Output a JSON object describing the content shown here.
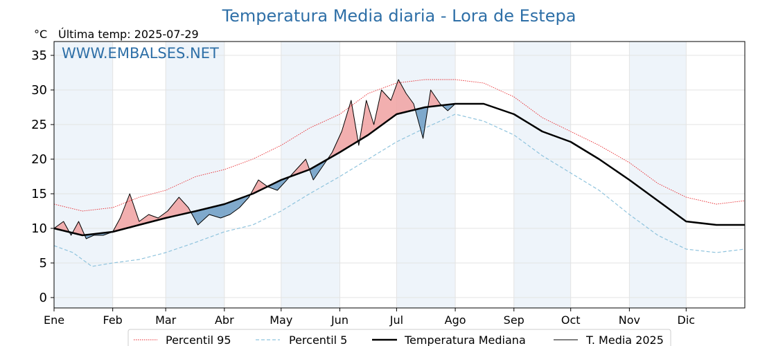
{
  "chart_data": {
    "type": "line",
    "title": "Temperatura Media diaria - Lora de Estepa",
    "unit_label": "°C",
    "subtitle": "Última temp: 2025-07-29",
    "watermark": "WWW.EMBALSES.NET",
    "ylim": [
      -1.5,
      37
    ],
    "yticks": [
      0,
      5,
      10,
      15,
      20,
      25,
      30,
      35
    ],
    "xlim": [
      0,
      365
    ],
    "months": [
      "Ene",
      "Feb",
      "Mar",
      "Abr",
      "May",
      "Jun",
      "Jul",
      "Ago",
      "Sep",
      "Oct",
      "Nov",
      "Dic"
    ],
    "month_starts": [
      0,
      31,
      59,
      90,
      120,
      151,
      181,
      212,
      243,
      273,
      304,
      334
    ],
    "grid": true,
    "legend_position": "bottom",
    "colors": {
      "title": "#2e6fa7",
      "p95": "#e8262b",
      "p5": "#8ec3dd",
      "median": "#000000",
      "current": "#000000",
      "above": "#f0a1a1",
      "below": "#6b9bc3",
      "band": "#eef4fa"
    },
    "series": [
      {
        "key": "p95",
        "name": "Percentil 95",
        "style": "dotted",
        "points": [
          [
            0,
            13.5
          ],
          [
            15,
            12.5
          ],
          [
            31,
            13
          ],
          [
            45,
            14.5
          ],
          [
            59,
            15.5
          ],
          [
            75,
            17.5
          ],
          [
            90,
            18.5
          ],
          [
            105,
            20
          ],
          [
            120,
            22
          ],
          [
            135,
            24.5
          ],
          [
            151,
            26.5
          ],
          [
            166,
            29.5
          ],
          [
            181,
            31
          ],
          [
            196,
            31.5
          ],
          [
            212,
            31.5
          ],
          [
            227,
            31
          ],
          [
            243,
            29
          ],
          [
            258,
            26
          ],
          [
            273,
            24
          ],
          [
            288,
            22
          ],
          [
            304,
            19.5
          ],
          [
            319,
            16.5
          ],
          [
            334,
            14.5
          ],
          [
            350,
            13.5
          ],
          [
            365,
            14
          ]
        ]
      },
      {
        "key": "p5",
        "name": "Percentil 5",
        "style": "dashed",
        "points": [
          [
            0,
            7.5
          ],
          [
            10,
            6.5
          ],
          [
            20,
            4.5
          ],
          [
            31,
            5
          ],
          [
            45,
            5.5
          ],
          [
            59,
            6.5
          ],
          [
            75,
            8
          ],
          [
            90,
            9.5
          ],
          [
            105,
            10.5
          ],
          [
            120,
            12.5
          ],
          [
            135,
            15
          ],
          [
            151,
            17.5
          ],
          [
            166,
            20
          ],
          [
            181,
            22.5
          ],
          [
            196,
            24.5
          ],
          [
            212,
            26.5
          ],
          [
            227,
            25.5
          ],
          [
            243,
            23.5
          ],
          [
            258,
            20.5
          ],
          [
            273,
            18
          ],
          [
            288,
            15.5
          ],
          [
            304,
            12
          ],
          [
            319,
            9
          ],
          [
            334,
            7
          ],
          [
            350,
            6.5
          ],
          [
            365,
            7
          ]
        ]
      },
      {
        "key": "median",
        "name": "Temperatura Mediana",
        "style": "thick",
        "points": [
          [
            0,
            10
          ],
          [
            15,
            9
          ],
          [
            31,
            9.5
          ],
          [
            45,
            10.5
          ],
          [
            59,
            11.5
          ],
          [
            75,
            12.5
          ],
          [
            90,
            13.5
          ],
          [
            105,
            15
          ],
          [
            120,
            17
          ],
          [
            135,
            18.5
          ],
          [
            151,
            21
          ],
          [
            166,
            23.5
          ],
          [
            181,
            26.5
          ],
          [
            196,
            27.5
          ],
          [
            212,
            28
          ],
          [
            227,
            28
          ],
          [
            243,
            26.5
          ],
          [
            258,
            24
          ],
          [
            273,
            22.5
          ],
          [
            288,
            20
          ],
          [
            304,
            17
          ],
          [
            319,
            14
          ],
          [
            334,
            11
          ],
          [
            350,
            10.5
          ],
          [
            365,
            10.5
          ]
        ]
      },
      {
        "key": "current",
        "name": "T. Media 2025",
        "style": "thin",
        "points": [
          [
            0,
            10
          ],
          [
            5,
            11
          ],
          [
            9,
            9
          ],
          [
            13,
            11
          ],
          [
            17,
            8.5
          ],
          [
            21,
            9
          ],
          [
            26,
            9
          ],
          [
            31,
            9.5
          ],
          [
            35,
            11.5
          ],
          [
            40,
            15
          ],
          [
            45,
            11
          ],
          [
            50,
            12
          ],
          [
            55,
            11.5
          ],
          [
            60,
            12.5
          ],
          [
            66,
            14.5
          ],
          [
            71,
            13
          ],
          [
            76,
            10.5
          ],
          [
            82,
            12
          ],
          [
            88,
            11.5
          ],
          [
            93,
            12
          ],
          [
            98,
            13
          ],
          [
            103,
            14.5
          ],
          [
            108,
            17
          ],
          [
            113,
            16
          ],
          [
            118,
            15.5
          ],
          [
            123,
            17
          ],
          [
            128,
            18.5
          ],
          [
            133,
            20
          ],
          [
            137,
            17
          ],
          [
            142,
            19
          ],
          [
            147,
            21
          ],
          [
            152,
            24
          ],
          [
            157,
            28.5
          ],
          [
            161,
            22
          ],
          [
            165,
            28.5
          ],
          [
            169,
            25
          ],
          [
            173,
            30
          ],
          [
            178,
            28.5
          ],
          [
            182,
            31.5
          ],
          [
            186,
            29.5
          ],
          [
            190,
            28
          ],
          [
            195,
            23
          ],
          [
            199,
            30
          ],
          [
            204,
            28
          ],
          [
            208,
            27
          ],
          [
            212,
            28
          ]
        ]
      }
    ]
  },
  "legend": {
    "p95_label": "Percentil 95",
    "p5_label": "Percentil 5",
    "median_label": "Temperatura Mediana",
    "current_label": "T. Media 2025"
  }
}
